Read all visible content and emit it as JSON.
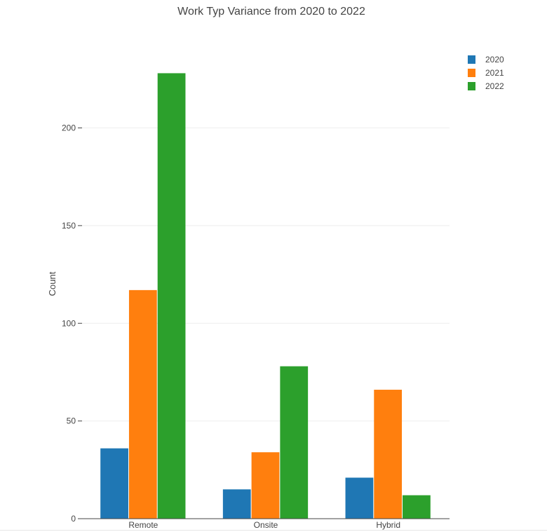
{
  "chart_data": {
    "type": "bar",
    "title": "Work Typ Variance from 2020 to 2022",
    "xlabel": "",
    "ylabel": "Count",
    "categories": [
      "Remote",
      "Onsite",
      "Hybrid"
    ],
    "series": [
      {
        "name": "2020",
        "color": "#1f77b4",
        "values": [
          36,
          15,
          21
        ]
      },
      {
        "name": "2021",
        "color": "#ff7f0e",
        "values": [
          117,
          34,
          66
        ]
      },
      {
        "name": "2022",
        "color": "#2ca02c",
        "values": [
          228,
          78,
          12
        ]
      }
    ],
    "ylim": [
      0,
      240
    ],
    "yticks": [
      0,
      50,
      100,
      150,
      200
    ],
    "grid": true,
    "legend_position": "top-right"
  }
}
